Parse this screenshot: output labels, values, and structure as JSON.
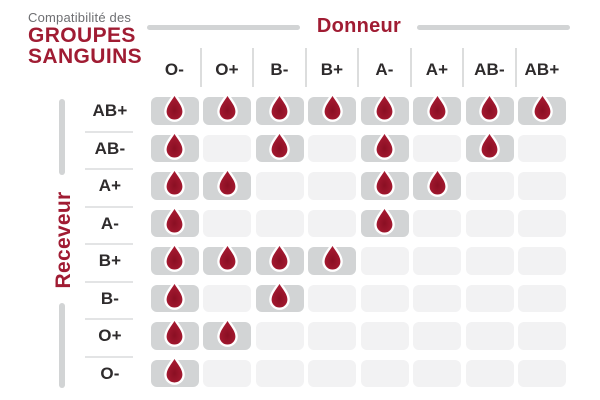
{
  "title": {
    "eyebrow": "Compatibilité des",
    "line1": "GROUPES",
    "line2": "SANGUINS"
  },
  "axes": {
    "donor_label": "Donneur",
    "receiver_label": "Receveur"
  },
  "icons": {
    "compatible_marker": "blood-drop-icon"
  },
  "colors": {
    "accent_red": "#a01c33",
    "drop_fill_dark": "#8a0f23",
    "drop_fill_light": "#ac1c34",
    "drop_outline": "#ffffff",
    "cell_compatible": "#d2d4d5",
    "cell_incompatible": "#f2f2f3",
    "line_gray": "#d2d4d5",
    "text_dark": "#2e2b2c",
    "text_gray": "#6e6f72"
  },
  "chart_data": {
    "type": "heatmap",
    "title": "Compatibilité des GROUPES SANGUINS",
    "xlabel": "Donneur",
    "ylabel": "Receveur",
    "columns": [
      "O-",
      "O+",
      "B-",
      "B+",
      "A-",
      "A+",
      "AB-",
      "AB+"
    ],
    "rows": [
      "AB+",
      "AB-",
      "A+",
      "A-",
      "B+",
      "B-",
      "O+",
      "O-"
    ],
    "matrix": [
      [
        1,
        1,
        1,
        1,
        1,
        1,
        1,
        1
      ],
      [
        1,
        0,
        1,
        0,
        1,
        0,
        1,
        0
      ],
      [
        1,
        1,
        0,
        0,
        1,
        1,
        0,
        0
      ],
      [
        1,
        0,
        0,
        0,
        1,
        0,
        0,
        0
      ],
      [
        1,
        1,
        1,
        1,
        0,
        0,
        0,
        0
      ],
      [
        1,
        0,
        1,
        0,
        0,
        0,
        0,
        0
      ],
      [
        1,
        1,
        0,
        0,
        0,
        0,
        0,
        0
      ],
      [
        1,
        0,
        0,
        0,
        0,
        0,
        0,
        0
      ]
    ],
    "cell_values": "1 = compatible (blood drop shown), 0 = not compatible (empty light cell)",
    "legend_position": "none",
    "grid": false
  }
}
